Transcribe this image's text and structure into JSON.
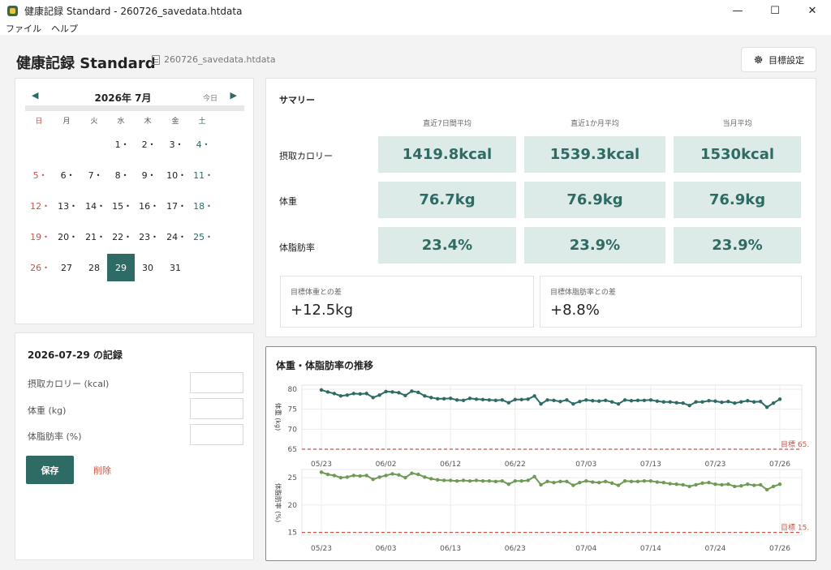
{
  "window": {
    "title": "健康記録 Standard - 260726_savedata.htdata",
    "minimize": "—",
    "maximize": "☐",
    "close": "✕"
  },
  "menu": {
    "file": "ファイル",
    "help": "ヘルプ"
  },
  "header": {
    "app_title": "健康記録 Standard",
    "file_name": "260726_savedata.htdata",
    "goal_button": "目標設定"
  },
  "calendar": {
    "prev": "◀",
    "next": "▶",
    "month_label": "2026年 7月",
    "today_label": "今日",
    "weekdays": [
      "日",
      "月",
      "火",
      "水",
      "木",
      "金",
      "土"
    ],
    "first_weekday": 3,
    "days_in_month": 31,
    "selected_day": 29,
    "marked_days": [
      1,
      2,
      3,
      4,
      5,
      6,
      7,
      8,
      9,
      10,
      11,
      12,
      13,
      14,
      15,
      16,
      17,
      18,
      19,
      20,
      21,
      22,
      23,
      24,
      25,
      26
    ],
    "dot": "•"
  },
  "record": {
    "title": "2026-07-29 の記録",
    "fields": [
      {
        "label": "摂取カロリー (kcal)",
        "value": ""
      },
      {
        "label": "体重 (kg)",
        "value": ""
      },
      {
        "label": "体脂肪率 (%)",
        "value": ""
      }
    ],
    "save_label": "保存",
    "delete_label": "削除"
  },
  "summary": {
    "title": "サマリー",
    "columns": [
      "直近7日間平均",
      "直近1か月平均",
      "当月平均"
    ],
    "rows": [
      {
        "label": "摂取カロリー",
        "values": [
          "1419.8kcal",
          "1539.3kcal",
          "1530kcal"
        ]
      },
      {
        "label": "体重",
        "values": [
          "76.7kg",
          "76.9kg",
          "76.9kg"
        ]
      },
      {
        "label": "体脂肪率",
        "values": [
          "23.4%",
          "23.9%",
          "23.9%"
        ]
      }
    ],
    "weight_diff_label": "目標体重との差",
    "weight_diff_value": "+12.5kg",
    "fat_diff_label": "目標体脂肪率との差",
    "fat_diff_value": "+8.8%"
  },
  "chart_title": "体重・体脂肪率の推移",
  "chart_data": [
    {
      "type": "line",
      "ylabel": "体重 (kg)",
      "ylim": [
        65,
        81
      ],
      "yticks": [
        65,
        70,
        75,
        80
      ],
      "x_tick_labels": [
        "05/23",
        "06/02",
        "06/12",
        "06/22",
        "07/03",
        "07/13",
        "07/23",
        "07/26"
      ],
      "goal_value": 65,
      "goal_label": "目標 65.",
      "color": "#2d6b64",
      "values": [
        79.8,
        79.3,
        78.9,
        78.3,
        78.5,
        78.9,
        78.8,
        78.9,
        77.9,
        78.5,
        79.4,
        79.3,
        79.1,
        78.4,
        79.5,
        79.2,
        78.3,
        77.9,
        77.6,
        77.6,
        77.7,
        77.3,
        77.2,
        77.7,
        77.5,
        77.4,
        77.3,
        77.2,
        77.3,
        76.6,
        77.4,
        77.4,
        77.5,
        78.3,
        76.3,
        77.3,
        77.2,
        76.9,
        77.3,
        76.3,
        76.9,
        77.3,
        77.1,
        77.0,
        77.2,
        76.8,
        76.3,
        77.3,
        77.1,
        77.2,
        77.2,
        77.3,
        77.0,
        76.8,
        76.8,
        76.6,
        76.5,
        75.9,
        76.8,
        76.8,
        77.1,
        77.0,
        76.7,
        76.9,
        76.5,
        76.8,
        77.1,
        76.8,
        76.9,
        75.5,
        76.5,
        77.5
      ]
    },
    {
      "type": "line",
      "ylabel": "体脂肪率 (%)",
      "ylim": [
        14.5,
        26.5
      ],
      "yticks": [
        15,
        20,
        25
      ],
      "x_tick_labels": [
        "05/23",
        "06/03",
        "06/13",
        "06/23",
        "07/04",
        "07/14",
        "07/24",
        "07/26"
      ],
      "goal_value": 15,
      "goal_label": "目標 15.",
      "color": "#6f9a55",
      "values": [
        26.0,
        25.6,
        25.4,
        25.0,
        25.1,
        25.4,
        25.3,
        25.4,
        24.7,
        25.1,
        25.4,
        25.7,
        25.5,
        25.0,
        25.8,
        25.6,
        25.1,
        24.8,
        24.6,
        24.5,
        24.5,
        24.4,
        24.5,
        24.4,
        24.5,
        24.4,
        24.4,
        24.3,
        24.4,
        23.8,
        24.4,
        24.4,
        24.5,
        25.2,
        23.7,
        24.3,
        24.1,
        24.3,
        24.3,
        23.6,
        24.1,
        24.4,
        24.2,
        24.1,
        24.3,
        24.0,
        23.6,
        24.4,
        24.3,
        24.3,
        24.4,
        24.4,
        24.2,
        24.1,
        23.9,
        23.8,
        23.7,
        23.4,
        23.7,
        24.0,
        24.1,
        23.8,
        23.7,
        23.8,
        23.4,
        23.5,
        23.8,
        23.6,
        23.7,
        22.8,
        23.4,
        23.8
      ]
    }
  ]
}
